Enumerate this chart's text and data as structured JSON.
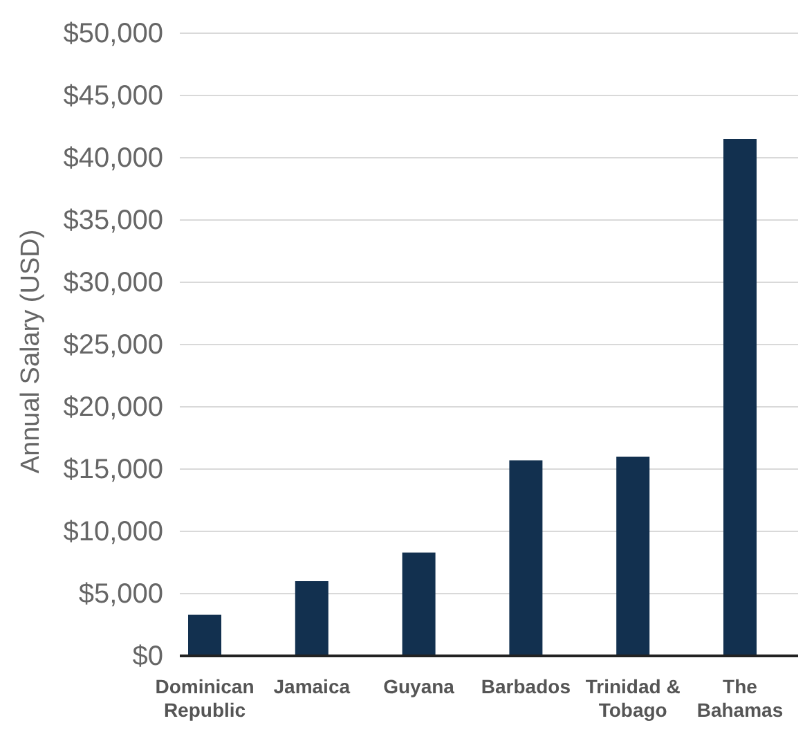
{
  "chart_data": {
    "type": "bar",
    "ylabel": "Annual Salary (USD)",
    "categories": [
      "Dominican Republic",
      "Jamaica",
      "Guyana",
      "Barbados",
      "Trinidad & Tobago",
      "The Bahamas"
    ],
    "values": [
      3300,
      6000,
      8300,
      15700,
      16000,
      41500
    ],
    "color": "#12304f",
    "ylim": [
      0,
      50000
    ],
    "yticks": [
      {
        "value": 0,
        "label": "$0"
      },
      {
        "value": 5000,
        "label": "$5,000"
      },
      {
        "value": 10000,
        "label": "$10,000"
      },
      {
        "value": 15000,
        "label": "$15,000"
      },
      {
        "value": 20000,
        "label": "$20,000"
      },
      {
        "value": 25000,
        "label": "$25,000"
      },
      {
        "value": 30000,
        "label": "$30,000"
      },
      {
        "value": 35000,
        "label": "$35,000"
      },
      {
        "value": 40000,
        "label": "$40,000"
      },
      {
        "value": 45000,
        "label": "$45,000"
      },
      {
        "value": 50000,
        "label": "$50,000"
      }
    ],
    "grid": "y"
  }
}
